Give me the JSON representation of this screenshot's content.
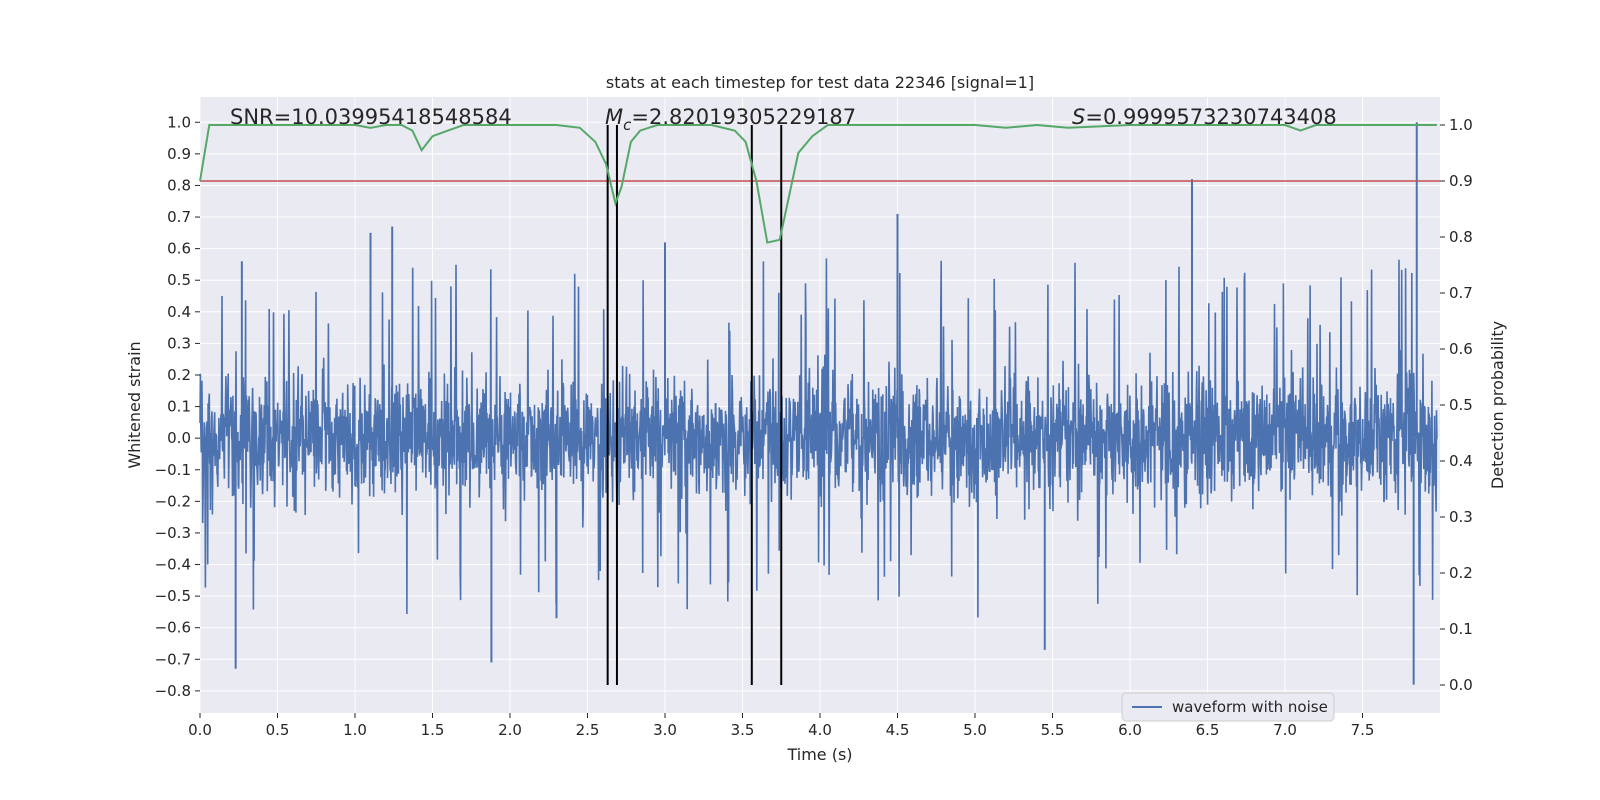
{
  "chart_data": {
    "type": "line",
    "title": "stats at each timestep for test data 22346 [signal=1]",
    "xlabel": "Time (s)",
    "ylabel_left": "Whitened strain",
    "ylabel_right": "Detection probability",
    "xlim": [
      0.0,
      8.0
    ],
    "ylim_left": [
      -0.87,
      1.08
    ],
    "ylim_right": [
      -0.05,
      1.05
    ],
    "x_ticks": [
      "0.0",
      "0.5",
      "1.0",
      "1.5",
      "2.0",
      "2.5",
      "3.0",
      "3.5",
      "4.0",
      "4.5",
      "5.0",
      "5.5",
      "6.0",
      "6.5",
      "7.0",
      "7.5"
    ],
    "x_tick_values": [
      0.0,
      0.5,
      1.0,
      1.5,
      2.0,
      2.5,
      3.0,
      3.5,
      4.0,
      4.5,
      5.0,
      5.5,
      6.0,
      6.5,
      7.0,
      7.5
    ],
    "y_left_ticks": [
      "1.0",
      "0.9",
      "0.8",
      "0.7",
      "0.6",
      "0.5",
      "0.4",
      "0.3",
      "0.2",
      "0.1",
      "0.0",
      "−0.1",
      "−0.2",
      "−0.3",
      "−0.4",
      "−0.5",
      "−0.6",
      "−0.7",
      "−0.8"
    ],
    "y_left_tick_values": [
      1.0,
      0.9,
      0.8,
      0.7,
      0.6,
      0.5,
      0.4,
      0.3,
      0.2,
      0.1,
      0.0,
      -0.1,
      -0.2,
      -0.3,
      -0.4,
      -0.5,
      -0.6,
      -0.7,
      -0.8
    ],
    "y_right_ticks": [
      "1.0",
      "0.9",
      "0.8",
      "0.7",
      "0.6",
      "0.5",
      "0.4",
      "0.3",
      "0.2",
      "0.1",
      "0.0"
    ],
    "y_right_tick_values": [
      1.0,
      0.9,
      0.8,
      0.7,
      0.6,
      0.5,
      0.4,
      0.3,
      0.2,
      0.1,
      0.0
    ],
    "annotations": {
      "snr": "SNR=10.03995418548584",
      "mc_symbol": "M",
      "mc_sub": "c",
      "mc_value": "=2.82019305229187",
      "s_symbol": "S",
      "s_value": "=0.9999573230743408"
    },
    "legend": {
      "label": "waveform with noise",
      "placement": "lower-right"
    },
    "series": [
      {
        "name": "waveform with noise",
        "color": "#4c72b0",
        "axis": "left",
        "style": "noise",
        "typical_amplitude": 0.3,
        "notable_peaks": [
          {
            "x": 0.23,
            "y": -0.73
          },
          {
            "x": 0.27,
            "y": 0.56
          },
          {
            "x": 1.1,
            "y": 0.65
          },
          {
            "x": 1.24,
            "y": 0.67
          },
          {
            "x": 1.88,
            "y": -0.71
          },
          {
            "x": 2.3,
            "y": -0.57
          },
          {
            "x": 3.0,
            "y": 0.62
          },
          {
            "x": 4.5,
            "y": 0.71
          },
          {
            "x": 5.45,
            "y": -0.67
          },
          {
            "x": 6.4,
            "y": 0.82
          },
          {
            "x": 7.83,
            "y": -0.78
          },
          {
            "x": 7.85,
            "y": 1.0
          }
        ]
      },
      {
        "name": "detection probability",
        "color": "#55a868",
        "axis": "right",
        "x": [
          0.0,
          0.06,
          0.2,
          0.4,
          0.6,
          0.8,
          1.0,
          1.1,
          1.2,
          1.3,
          1.37,
          1.43,
          1.5,
          1.6,
          1.7,
          2.0,
          2.3,
          2.45,
          2.55,
          2.62,
          2.68,
          2.72,
          2.78,
          2.84,
          2.95,
          3.1,
          3.3,
          3.45,
          3.52,
          3.59,
          3.66,
          3.74,
          3.86,
          3.95,
          4.05,
          4.5,
          5.0,
          5.2,
          5.4,
          5.6,
          6.0,
          6.5,
          7.0,
          7.1,
          7.2,
          7.5,
          7.98
        ],
        "y": [
          0.9,
          1.0,
          1.0,
          1.0,
          1.0,
          1.0,
          1.0,
          0.995,
          1.0,
          1.0,
          0.99,
          0.955,
          0.98,
          0.99,
          1.0,
          1.0,
          1.0,
          0.995,
          0.97,
          0.93,
          0.86,
          0.89,
          0.97,
          0.99,
          1.0,
          1.0,
          1.0,
          0.99,
          0.97,
          0.9,
          0.79,
          0.795,
          0.95,
          0.98,
          1.0,
          1.0,
          1.0,
          0.995,
          1.0,
          0.995,
          1.0,
          1.0,
          1.0,
          0.99,
          1.0,
          1.0,
          1.0
        ]
      }
    ],
    "threshold": {
      "axis": "right",
      "y": 0.9,
      "color": "#c44e52"
    },
    "event_markers": {
      "color": "#000000",
      "x": [
        2.63,
        2.69,
        3.56,
        3.75
      ]
    },
    "style": {
      "background": "#eaeaf2",
      "grid": true,
      "grid_color": "#ffffff",
      "text_color": "#262626"
    }
  }
}
